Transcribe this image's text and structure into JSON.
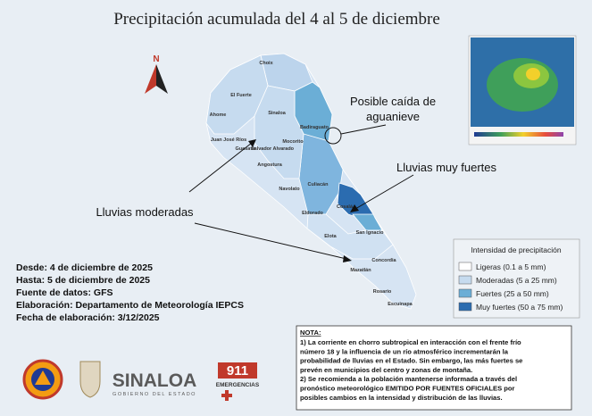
{
  "header": {
    "title": "Precipitación acumulada del 4 al 5 de diciembre"
  },
  "compass": {
    "label": "N"
  },
  "annotations": [
    "Posible caída de",
    "aguanieve",
    "Lluvias muy fuertes",
    "Lluvias moderadas"
  ],
  "municipalities": [
    "Choix",
    "El Fuerte",
    "Ahome",
    "Sinaloa",
    "Juan José Ríos",
    "Guasave",
    "Salvador Alvarado",
    "Badiraguato",
    "Mocorito",
    "Angostura",
    "Navolato",
    "Culiacán",
    "Eldorado",
    "Cosalá",
    "Elota",
    "San Ignacio",
    "Mazatlán",
    "Concordia",
    "Rosario",
    "Escuinapa"
  ],
  "info": [
    "Desde: 4 de diciembre de 2025",
    "Hasta: 5 de diciembre de 2025",
    "Fuente de datos: GFS",
    "Elaboración: Departamento de Meteorología IEPCS",
    "Fecha de elaboración: 3/12/2025"
  ],
  "legend": {
    "title": "Intensidad de precipitación",
    "items": [
      {
        "label": "Ligeras (0.1 a 5 mm)",
        "color": "#ffffff"
      },
      {
        "label": "Moderadas (5 a 25 mm)",
        "color": "#c6dbef"
      },
      {
        "label": "Fuertes (25 a 50 mm)",
        "color": "#6baed6"
      },
      {
        "label": "Muy fuertes (50 a 75 mm)",
        "color": "#2b6cb0"
      }
    ]
  },
  "note": {
    "title": "NOTA:",
    "lines": [
      "1) La corriente en chorro subtropical en interacción con el frente frío",
      "número 18 y la influencia de un río atmosférico incrementarán la",
      "probabilidad de lluvias en el Estado. Sin embargo, las más fuertes se",
      "prevén en municipios del centro y zonas de montaña.",
      "2) Se recomienda a la población mantenerse informada a través del",
      "pronóstico meteorológico EMITIDO POR FUENTES OFICIALES por",
      "posibles cambios en la intensidad y distribución de las lluvias."
    ]
  },
  "logos": {
    "state": "SINALOA",
    "government": "GOBIERNO DEL ESTADO",
    "number": "911",
    "emergency": "EMERGENCIAS"
  }
}
